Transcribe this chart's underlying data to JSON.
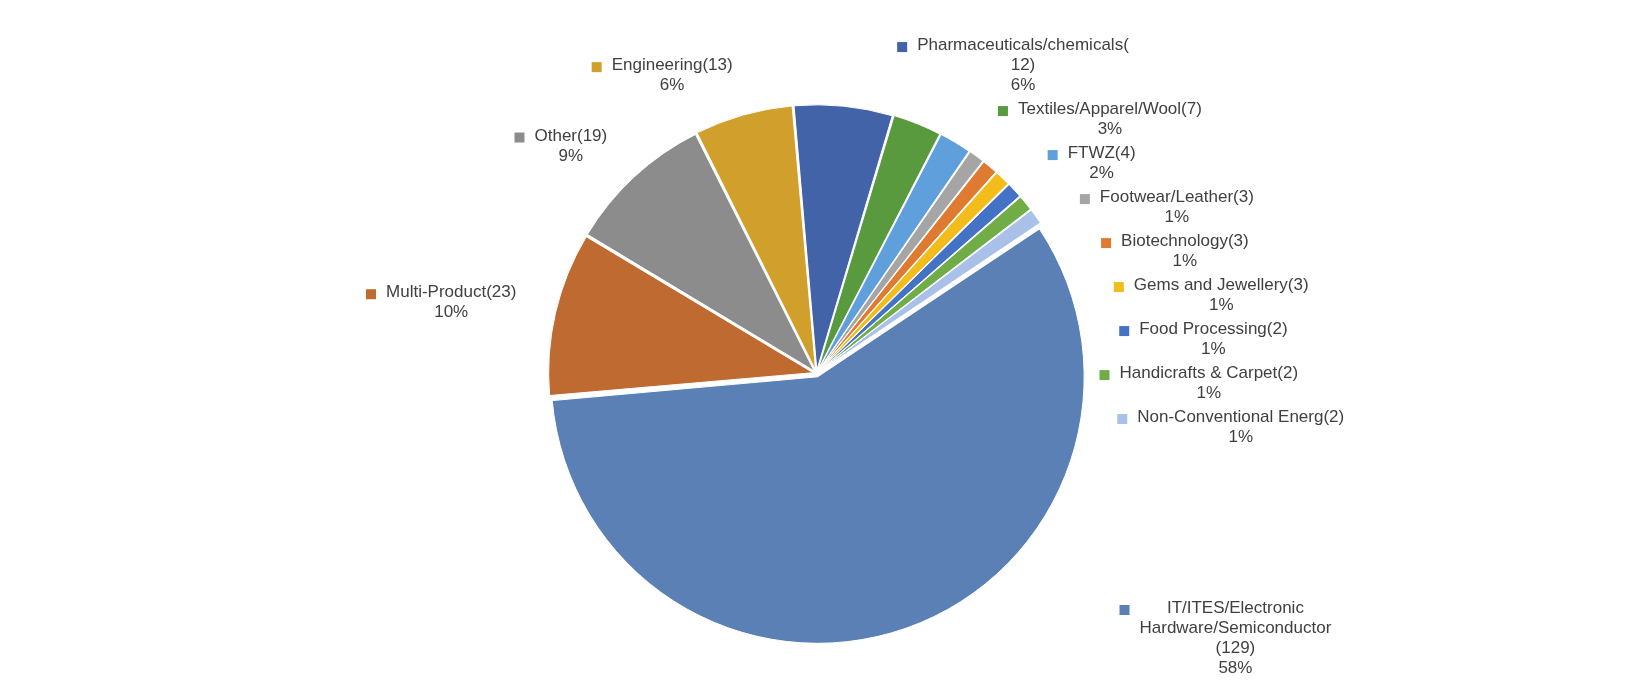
{
  "chart_data": {
    "type": "pie",
    "legend": "right",
    "categories": [
      "Pharmaceuticals/chemicals(12)",
      "Textiles/Apparel/Wool(7)",
      "FTWZ(4)",
      "Footwear/Leather(3)",
      "Biotechnology(3)",
      "Gems and Jewellery(3)",
      "Food Processing(2)",
      "Handicrafts & Carpet(2)",
      "Non-Conventional Energ(2)",
      "IT/ITES/Electronic Hardware/Semiconductor (129)",
      "Multi-Product(23)",
      "Other(19)",
      "Engineering(13)"
    ],
    "values": [
      6,
      3,
      2,
      1,
      1,
      1,
      1,
      1,
      1,
      58,
      10,
      9,
      6
    ],
    "value_labels": [
      "6%",
      "3%",
      "2%",
      "1%",
      "1%",
      "1%",
      "1%",
      "1%",
      "1%",
      "58%",
      "10%",
      "9%",
      "6%"
    ],
    "colors": [
      "#4363a8",
      "#5a9a3e",
      "#5f9fdc",
      "#a5a5a5",
      "#e07a30",
      "#f2bd1a",
      "#4472c4",
      "#70ad47",
      "#a9c0e8",
      "#5b80b6",
      "#bf6a30",
      "#8c8c8c",
      "#d1a02c"
    ]
  }
}
